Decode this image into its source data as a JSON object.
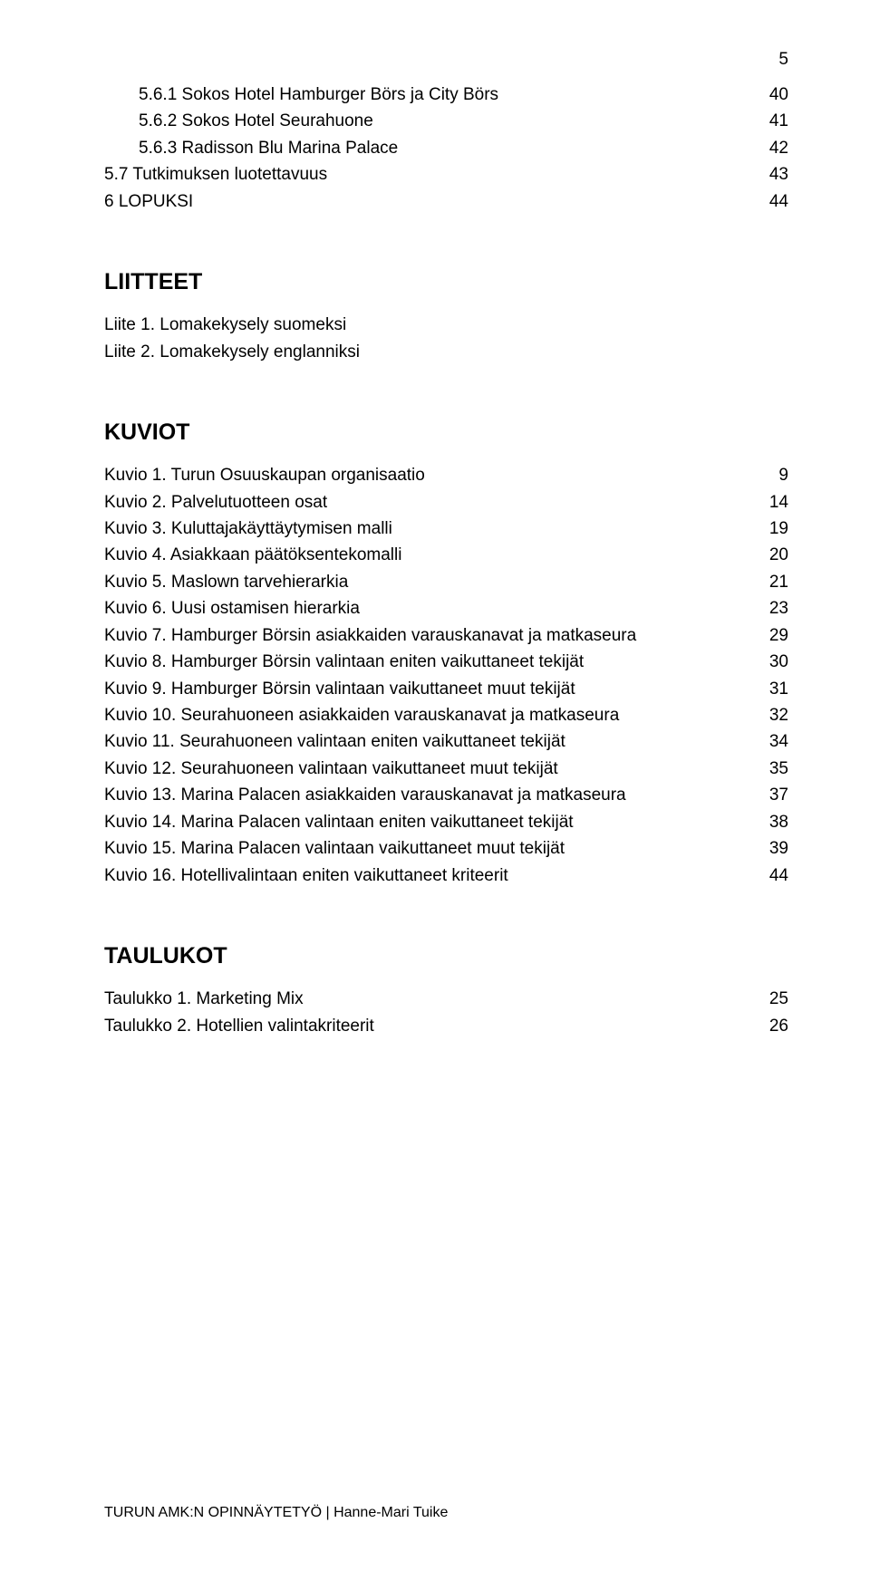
{
  "page_number": "5",
  "toc_top": [
    {
      "label": "5.6.1 Sokos Hotel Hamburger Börs ja City Börs",
      "page": "40",
      "indent": true
    },
    {
      "label": "5.6.2 Sokos Hotel Seurahuone",
      "page": "41",
      "indent": true
    },
    {
      "label": "5.6.3 Radisson Blu Marina Palace",
      "page": "42",
      "indent": true
    },
    {
      "label": "5.7 Tutkimuksen luotettavuus",
      "page": "43",
      "indent": false
    },
    {
      "label": "6 LOPUKSI",
      "page": "44",
      "indent": false
    }
  ],
  "headings": {
    "liitteet": "LIITTEET",
    "kuviot": "KUVIOT",
    "taulukot": "TAULUKOT"
  },
  "liitteet": [
    "Liite 1. Lomakekysely suomeksi",
    "Liite 2. Lomakekysely englanniksi"
  ],
  "kuviot": [
    {
      "label": "Kuvio 1. Turun Osuuskaupan organisaatio",
      "page": "9"
    },
    {
      "label": "Kuvio 2. Palvelutuotteen osat",
      "page": "14"
    },
    {
      "label": "Kuvio 3. Kuluttajakäyttäytymisen malli",
      "page": "19"
    },
    {
      "label": "Kuvio 4. Asiakkaan päätöksentekomalli",
      "page": "20"
    },
    {
      "label": "Kuvio 5. Maslown tarvehierarkia",
      "page": "21"
    },
    {
      "label": "Kuvio 6. Uusi ostamisen hierarkia",
      "page": "23"
    },
    {
      "label": "Kuvio 7. Hamburger Börsin asiakkaiden varauskanavat ja matkaseura",
      "page": "29"
    },
    {
      "label": "Kuvio 8. Hamburger Börsin valintaan eniten vaikuttaneet tekijät",
      "page": "30"
    },
    {
      "label": "Kuvio 9. Hamburger Börsin valintaan vaikuttaneet muut tekijät",
      "page": "31"
    },
    {
      "label": "Kuvio 10. Seurahuoneen asiakkaiden varauskanavat ja matkaseura",
      "page": "32"
    },
    {
      "label": "Kuvio 11. Seurahuoneen valintaan eniten vaikuttaneet tekijät",
      "page": "34"
    },
    {
      "label": "Kuvio 12. Seurahuoneen valintaan vaikuttaneet muut tekijät",
      "page": "35"
    },
    {
      "label": "Kuvio 13. Marina Palacen asiakkaiden varauskanavat ja matkaseura",
      "page": "37"
    },
    {
      "label": "Kuvio 14. Marina Palacen valintaan eniten vaikuttaneet tekijät",
      "page": "38"
    },
    {
      "label": "Kuvio 15. Marina Palacen valintaan vaikuttaneet muut tekijät",
      "page": "39"
    },
    {
      "label": "Kuvio 16. Hotellivalintaan eniten vaikuttaneet kriteerit",
      "page": "44"
    }
  ],
  "taulukot": [
    {
      "label": "Taulukko 1. Marketing Mix",
      "page": "25"
    },
    {
      "label": "Taulukko 2. Hotellien valintakriteerit",
      "page": "26"
    }
  ],
  "footer": "TURUN AMK:N OPINNÄYTETYÖ | Hanne-Mari Tuike"
}
